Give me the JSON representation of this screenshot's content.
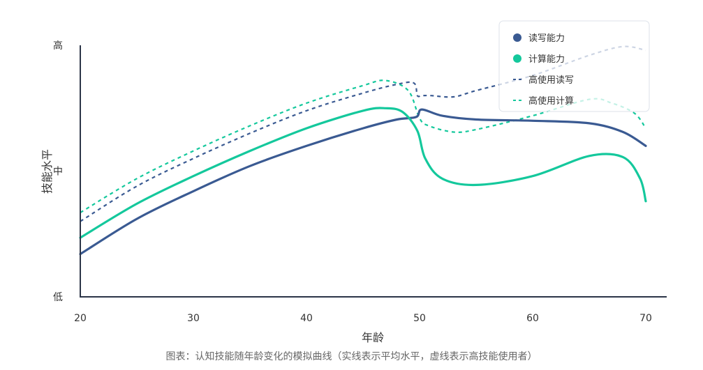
{
  "caption": "图表：认知技能随年龄变化的模拟曲线（实线表示平均水平，虚线表示高技能使用者）",
  "chart_data": {
    "type": "line",
    "xlabel": "年龄",
    "ylabel": "技能水平",
    "xlim": [
      20,
      70
    ],
    "x_ticks": [
      20,
      30,
      40,
      50,
      60,
      70
    ],
    "y_levels": [
      {
        "label": "低",
        "value": 0
      },
      {
        "label": "中",
        "value": 0.5
      },
      {
        "label": "高",
        "value": 1
      }
    ],
    "ylim": [
      0,
      1
    ],
    "grid": false,
    "legend_position": "top-right",
    "series": [
      {
        "name": "读写能力",
        "style": "solid",
        "color": "#3a5a92",
        "x": [
          20,
          25,
          30,
          35,
          40,
          45,
          48,
          49.7,
          50.2,
          52,
          55,
          60,
          65,
          68,
          70
        ],
        "y": [
          0.17,
          0.31,
          0.42,
          0.52,
          0.6,
          0.67,
          0.705,
          0.715,
          0.745,
          0.72,
          0.705,
          0.7,
          0.69,
          0.655,
          0.6
        ]
      },
      {
        "name": "计算能力",
        "style": "solid",
        "color": "#14c89c",
        "x": [
          20,
          25,
          30,
          35,
          40,
          45,
          47,
          48.5,
          49.8,
          50.5,
          52,
          55,
          60,
          65,
          68,
          69.5,
          70
        ],
        "y": [
          0.235,
          0.37,
          0.48,
          0.58,
          0.67,
          0.74,
          0.75,
          0.735,
          0.66,
          0.55,
          0.47,
          0.445,
          0.48,
          0.56,
          0.555,
          0.47,
          0.38
        ]
      },
      {
        "name": "高使用读写",
        "style": "dashed",
        "color": "#3a5a92",
        "x": [
          20,
          25,
          30,
          35,
          40,
          45,
          48,
          49.5,
          49.8,
          50.2,
          51,
          53,
          55,
          60,
          65,
          68,
          70
        ],
        "y": [
          0.3,
          0.44,
          0.55,
          0.65,
          0.74,
          0.81,
          0.845,
          0.85,
          0.8,
          0.8,
          0.8,
          0.795,
          0.82,
          0.88,
          0.96,
          0.995,
          0.98
        ]
      },
      {
        "name": "高使用计算",
        "style": "dashed",
        "color": "#14c89c",
        "x": [
          20,
          25,
          30,
          35,
          40,
          45,
          47,
          49,
          50,
          50.8,
          53,
          55,
          60,
          65,
          67,
          69,
          70
        ],
        "y": [
          0.335,
          0.47,
          0.58,
          0.68,
          0.77,
          0.84,
          0.86,
          0.82,
          0.71,
          0.68,
          0.655,
          0.665,
          0.72,
          0.785,
          0.77,
          0.73,
          0.67
        ]
      }
    ]
  }
}
